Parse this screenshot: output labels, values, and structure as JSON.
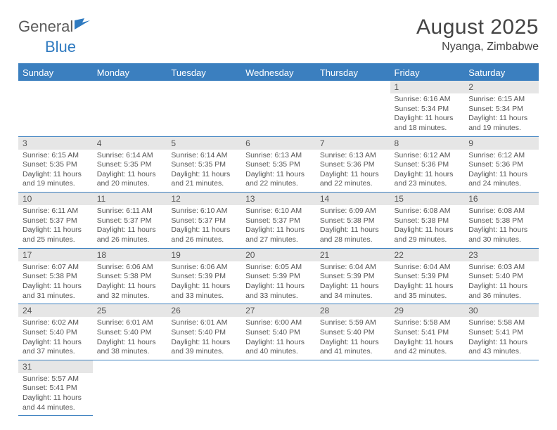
{
  "logo": {
    "text1": "General",
    "text2": "Blue"
  },
  "title": {
    "month": "August 2025",
    "location": "Nyanga, Zimbabwe"
  },
  "colors": {
    "header_bg": "#3b7fbf",
    "header_text": "#ffffff",
    "daynum_bg": "#e6e6e6",
    "body_text": "#555555",
    "border": "#3b7fbf"
  },
  "day_names": [
    "Sunday",
    "Monday",
    "Tuesday",
    "Wednesday",
    "Thursday",
    "Friday",
    "Saturday"
  ],
  "leading_blanks": 5,
  "days": [
    {
      "n": 1,
      "sunrise": "6:16 AM",
      "sunset": "5:34 PM",
      "daylight": "11 hours and 18 minutes."
    },
    {
      "n": 2,
      "sunrise": "6:15 AM",
      "sunset": "5:34 PM",
      "daylight": "11 hours and 19 minutes."
    },
    {
      "n": 3,
      "sunrise": "6:15 AM",
      "sunset": "5:35 PM",
      "daylight": "11 hours and 19 minutes."
    },
    {
      "n": 4,
      "sunrise": "6:14 AM",
      "sunset": "5:35 PM",
      "daylight": "11 hours and 20 minutes."
    },
    {
      "n": 5,
      "sunrise": "6:14 AM",
      "sunset": "5:35 PM",
      "daylight": "11 hours and 21 minutes."
    },
    {
      "n": 6,
      "sunrise": "6:13 AM",
      "sunset": "5:35 PM",
      "daylight": "11 hours and 22 minutes."
    },
    {
      "n": 7,
      "sunrise": "6:13 AM",
      "sunset": "5:36 PM",
      "daylight": "11 hours and 22 minutes."
    },
    {
      "n": 8,
      "sunrise": "6:12 AM",
      "sunset": "5:36 PM",
      "daylight": "11 hours and 23 minutes."
    },
    {
      "n": 9,
      "sunrise": "6:12 AM",
      "sunset": "5:36 PM",
      "daylight": "11 hours and 24 minutes."
    },
    {
      "n": 10,
      "sunrise": "6:11 AM",
      "sunset": "5:37 PM",
      "daylight": "11 hours and 25 minutes."
    },
    {
      "n": 11,
      "sunrise": "6:11 AM",
      "sunset": "5:37 PM",
      "daylight": "11 hours and 26 minutes."
    },
    {
      "n": 12,
      "sunrise": "6:10 AM",
      "sunset": "5:37 PM",
      "daylight": "11 hours and 26 minutes."
    },
    {
      "n": 13,
      "sunrise": "6:10 AM",
      "sunset": "5:37 PM",
      "daylight": "11 hours and 27 minutes."
    },
    {
      "n": 14,
      "sunrise": "6:09 AM",
      "sunset": "5:38 PM",
      "daylight": "11 hours and 28 minutes."
    },
    {
      "n": 15,
      "sunrise": "6:08 AM",
      "sunset": "5:38 PM",
      "daylight": "11 hours and 29 minutes."
    },
    {
      "n": 16,
      "sunrise": "6:08 AM",
      "sunset": "5:38 PM",
      "daylight": "11 hours and 30 minutes."
    },
    {
      "n": 17,
      "sunrise": "6:07 AM",
      "sunset": "5:38 PM",
      "daylight": "11 hours and 31 minutes."
    },
    {
      "n": 18,
      "sunrise": "6:06 AM",
      "sunset": "5:38 PM",
      "daylight": "11 hours and 32 minutes."
    },
    {
      "n": 19,
      "sunrise": "6:06 AM",
      "sunset": "5:39 PM",
      "daylight": "11 hours and 33 minutes."
    },
    {
      "n": 20,
      "sunrise": "6:05 AM",
      "sunset": "5:39 PM",
      "daylight": "11 hours and 33 minutes."
    },
    {
      "n": 21,
      "sunrise": "6:04 AM",
      "sunset": "5:39 PM",
      "daylight": "11 hours and 34 minutes."
    },
    {
      "n": 22,
      "sunrise": "6:04 AM",
      "sunset": "5:39 PM",
      "daylight": "11 hours and 35 minutes."
    },
    {
      "n": 23,
      "sunrise": "6:03 AM",
      "sunset": "5:40 PM",
      "daylight": "11 hours and 36 minutes."
    },
    {
      "n": 24,
      "sunrise": "6:02 AM",
      "sunset": "5:40 PM",
      "daylight": "11 hours and 37 minutes."
    },
    {
      "n": 25,
      "sunrise": "6:01 AM",
      "sunset": "5:40 PM",
      "daylight": "11 hours and 38 minutes."
    },
    {
      "n": 26,
      "sunrise": "6:01 AM",
      "sunset": "5:40 PM",
      "daylight": "11 hours and 39 minutes."
    },
    {
      "n": 27,
      "sunrise": "6:00 AM",
      "sunset": "5:40 PM",
      "daylight": "11 hours and 40 minutes."
    },
    {
      "n": 28,
      "sunrise": "5:59 AM",
      "sunset": "5:40 PM",
      "daylight": "11 hours and 41 minutes."
    },
    {
      "n": 29,
      "sunrise": "5:58 AM",
      "sunset": "5:41 PM",
      "daylight": "11 hours and 42 minutes."
    },
    {
      "n": 30,
      "sunrise": "5:58 AM",
      "sunset": "5:41 PM",
      "daylight": "11 hours and 43 minutes."
    },
    {
      "n": 31,
      "sunrise": "5:57 AM",
      "sunset": "5:41 PM",
      "daylight": "11 hours and 44 minutes."
    }
  ],
  "labels": {
    "sunrise": "Sunrise:",
    "sunset": "Sunset:",
    "daylight": "Daylight:"
  }
}
